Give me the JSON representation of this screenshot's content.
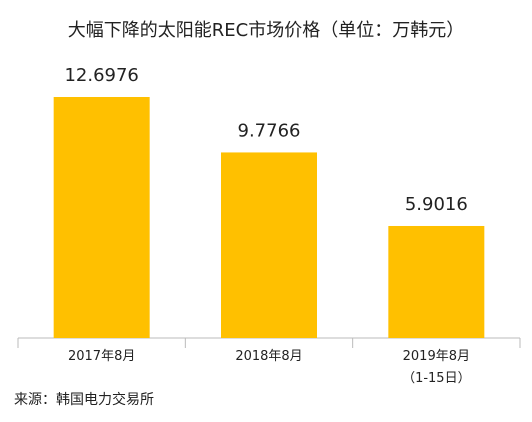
{
  "chart_data": {
    "type": "bar",
    "title": "大幅下降的太阳能REC市场价格（单位：万韩元）",
    "categories": [
      "2017年8月",
      "2018年8月",
      "2019年8月\n（1-15日）"
    ],
    "values": [
      12.6976,
      9.7766,
      5.9016
    ],
    "color": "#ffc000",
    "source": "来源：韩国电力交易所"
  }
}
